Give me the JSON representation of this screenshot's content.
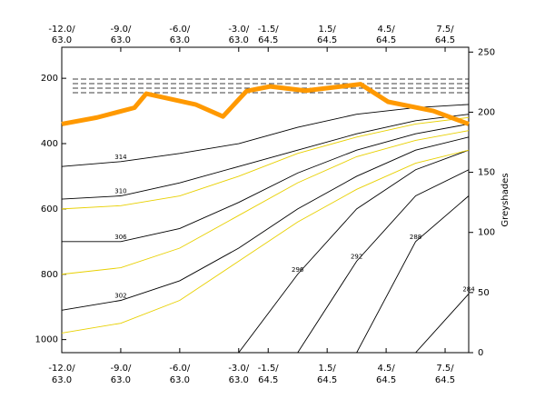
{
  "chart_data": {
    "type": "contour",
    "y2label": "Greyshades",
    "xlim": [
      -12,
      8.7
    ],
    "xticks": [
      {
        "value": -12,
        "label": "-12.0/"
      },
      {
        "value": -9,
        "label": "-9.0/"
      },
      {
        "value": -6,
        "label": "-6.0/"
      },
      {
        "value": -3,
        "label": "-3.0/"
      },
      {
        "value": -1.5,
        "label": "-1.5/"
      },
      {
        "value": 1.5,
        "label": "1.5/"
      },
      {
        "value": 4.5,
        "label": "4.5/"
      },
      {
        "value": 7.5,
        "label": "7.5/"
      }
    ],
    "xtick_sublabels": [
      "63.0",
      "63.0",
      "63.0",
      "63.0",
      "64.5",
      "64.5",
      "64.5",
      "64.5"
    ],
    "ylim": [
      1040,
      105
    ],
    "yticks": [
      200,
      400,
      600,
      800,
      1000
    ],
    "y2lim": [
      0,
      254
    ],
    "y2ticks": [
      0,
      50,
      100,
      150,
      200,
      250
    ],
    "x": [
      -12,
      -9,
      -6,
      -3,
      0,
      3,
      6,
      8.7
    ],
    "series": [
      {
        "name": "314",
        "color": "#000000",
        "values": [
          470,
          455,
          430,
          400,
          350,
          310,
          290,
          280
        ]
      },
      {
        "name": "310",
        "color": "#000000",
        "values": [
          570,
          560,
          520,
          470,
          420,
          370,
          330,
          310
        ]
      },
      {
        "name": "306",
        "color": "#000000",
        "values": [
          700,
          700,
          660,
          580,
          490,
          420,
          370,
          340
        ]
      },
      {
        "name": "302",
        "color": "#000000",
        "values": [
          910,
          880,
          820,
          720,
          600,
          500,
          420,
          380
        ]
      },
      {
        "name": "296",
        "color": "#000000",
        "values": [
          null,
          null,
          null,
          1040,
          800,
          600,
          480,
          420
        ]
      },
      {
        "name": "292",
        "color": "#000000",
        "values": [
          null,
          null,
          null,
          null,
          1040,
          760,
          560,
          480
        ]
      },
      {
        "name": "288",
        "color": "#000000",
        "values": [
          null,
          null,
          null,
          null,
          null,
          1040,
          700,
          560
        ]
      },
      {
        "name": "284",
        "color": "#000000",
        "values": [
          null,
          null,
          null,
          null,
          null,
          null,
          1040,
          860
        ]
      },
      {
        "color": "#e8d000",
        "values": [
          600,
          590,
          560,
          500,
          430,
          380,
          340,
          320
        ]
      },
      {
        "color": "#e8d000",
        "values": [
          800,
          780,
          720,
          620,
          520,
          440,
          390,
          360
        ]
      },
      {
        "color": "#e8d000",
        "values": [
          980,
          950,
          880,
          760,
          640,
          540,
          460,
          420
        ]
      }
    ],
    "tropopause": {
      "color": "#ff9900",
      "x": [
        -12,
        -10.2,
        -8.3,
        -7.7,
        -5.2,
        -3.8,
        -2.6,
        -1.4,
        0.4,
        3.2,
        4.6,
        6.9,
        8.7
      ],
      "values": [
        340,
        320,
        290,
        247,
        280,
        317,
        239,
        225,
        238,
        218,
        272,
        300,
        340
      ]
    }
  }
}
